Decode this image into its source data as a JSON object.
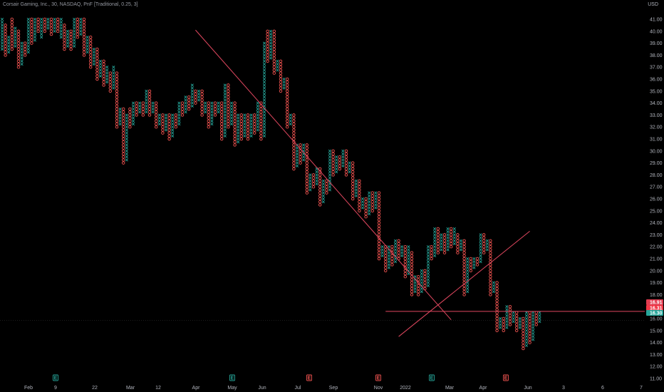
{
  "legend": {
    "text": "Corsair Gaming, Inc., 30, NASDAQ, PnF [Traditional, 0.25, 3]"
  },
  "currency": "USD",
  "colors": {
    "background": "#000000",
    "up": "#26a69a",
    "down": "#ef5350",
    "trendline": "#e0475f",
    "grid": "#222222"
  },
  "price_tags": [
    {
      "label": "16.91",
      "value": 16.91,
      "color": "#e03c50"
    },
    {
      "label": "16.31",
      "value": 16.31,
      "color": "#f23645"
    },
    {
      "label": "16.30",
      "value": 15.85,
      "color": "#26a69a"
    }
  ],
  "events": [
    {
      "label": "E",
      "x_label": "9",
      "type": "earnings-positive"
    },
    {
      "label": "E",
      "x_label": "May",
      "type": "earnings-positive"
    },
    {
      "label": "E",
      "x_label": "Jul",
      "type": "earnings-negative"
    },
    {
      "label": "E",
      "x_label": "Nov",
      "type": "earnings-negative"
    },
    {
      "label": "E",
      "x_label": "2022",
      "type": "earnings-positive"
    },
    {
      "label": "E",
      "x_label": "Apr",
      "type": "earnings-negative"
    }
  ],
  "chart_data": {
    "type": "point-and-figure",
    "title": "Corsair Gaming, Inc., 30, NASDAQ, PnF [Traditional, 0.25, 3]",
    "y_axis": {
      "ticks": [
        "11.00",
        "12.00",
        "13.00",
        "14.00",
        "15.00",
        "16.00",
        "17.00",
        "18.00",
        "19.00",
        "20.00",
        "21.00",
        "22.00",
        "23.00",
        "24.00",
        "25.00",
        "26.00",
        "27.00",
        "28.00",
        "29.00",
        "30.00",
        "31.00",
        "32.00",
        "33.00",
        "34.00",
        "35.00",
        "36.00",
        "37.00",
        "38.00",
        "39.00",
        "40.00",
        "41.00"
      ],
      "range": [
        11,
        41
      ],
      "side": "right"
    },
    "x_axis": {
      "ticks": [
        "Feb",
        "9",
        "22",
        "Mar",
        "12",
        "Apr",
        "May",
        "Jun",
        "Jul",
        "Sep",
        "Nov",
        "2022",
        "Mar",
        "Apr",
        "Jun",
        "3",
        "6",
        "7"
      ]
    },
    "box_size": 0.25,
    "reversal": 3,
    "columns": [
      {
        "t": "X",
        "lo": 38.5,
        "hi": 41.0
      },
      {
        "t": "O",
        "lo": 38.0,
        "hi": 40.5
      },
      {
        "t": "X",
        "lo": 38.25,
        "hi": 39.5
      },
      {
        "t": "O",
        "lo": 38.5,
        "hi": 41.0
      },
      {
        "t": "X",
        "lo": 38.75,
        "hi": 40.25
      },
      {
        "t": "O",
        "lo": 37.0,
        "hi": 40.0
      },
      {
        "t": "X",
        "lo": 37.25,
        "hi": 39.0
      },
      {
        "t": "O",
        "lo": 38.0,
        "hi": 39.0
      },
      {
        "t": "X",
        "lo": 38.25,
        "hi": 41.0
      },
      {
        "t": "O",
        "lo": 39.0,
        "hi": 41.0
      },
      {
        "t": "X",
        "lo": 39.25,
        "hi": 41.0
      },
      {
        "t": "O",
        "lo": 40.0,
        "hi": 41.0
      },
      {
        "t": "X",
        "lo": 39.5,
        "hi": 41.0
      },
      {
        "t": "O",
        "lo": 40.0,
        "hi": 41.0
      },
      {
        "t": "X",
        "lo": 40.25,
        "hi": 41.0
      },
      {
        "t": "O",
        "lo": 39.75,
        "hi": 41.0
      },
      {
        "t": "X",
        "lo": 40.0,
        "hi": 41.0
      },
      {
        "t": "O",
        "lo": 40.0,
        "hi": 41.0
      },
      {
        "t": "X",
        "lo": 39.5,
        "hi": 41.0
      },
      {
        "t": "O",
        "lo": 38.5,
        "hi": 40.5
      },
      {
        "t": "X",
        "lo": 38.75,
        "hi": 40.0
      },
      {
        "t": "O",
        "lo": 38.5,
        "hi": 40.0
      },
      {
        "t": "X",
        "lo": 38.75,
        "hi": 41.0
      },
      {
        "t": "O",
        "lo": 39.5,
        "hi": 41.0
      },
      {
        "t": "X",
        "lo": 39.75,
        "hi": 41.0
      },
      {
        "t": "O",
        "lo": 38.0,
        "hi": 41.0
      },
      {
        "t": "X",
        "lo": 38.25,
        "hi": 39.5
      },
      {
        "t": "O",
        "lo": 37.0,
        "hi": 39.5
      },
      {
        "t": "X",
        "lo": 37.25,
        "hi": 38.5
      },
      {
        "t": "O",
        "lo": 36.0,
        "hi": 38.5
      },
      {
        "t": "X",
        "lo": 36.25,
        "hi": 37.5
      },
      {
        "t": "O",
        "lo": 35.5,
        "hi": 37.5
      },
      {
        "t": "X",
        "lo": 35.75,
        "hi": 37.0
      },
      {
        "t": "O",
        "lo": 35.0,
        "hi": 36.5
      },
      {
        "t": "X",
        "lo": 35.25,
        "hi": 37.0
      },
      {
        "t": "O",
        "lo": 32.0,
        "hi": 36.5
      },
      {
        "t": "X",
        "lo": 32.25,
        "hi": 33.5
      },
      {
        "t": "O",
        "lo": 29.0,
        "hi": 33.5
      },
      {
        "t": "X",
        "lo": 29.25,
        "hi": 33.0
      },
      {
        "t": "O",
        "lo": 32.0,
        "hi": 33.5
      },
      {
        "t": "X",
        "lo": 32.25,
        "hi": 34.0
      },
      {
        "t": "O",
        "lo": 33.0,
        "hi": 34.0
      },
      {
        "t": "X",
        "lo": 33.25,
        "hi": 34.0
      },
      {
        "t": "O",
        "lo": 33.0,
        "hi": 34.0
      },
      {
        "t": "X",
        "lo": 33.25,
        "hi": 35.0
      },
      {
        "t": "O",
        "lo": 33.0,
        "hi": 35.0
      },
      {
        "t": "X",
        "lo": 33.25,
        "hi": 34.0
      },
      {
        "t": "O",
        "lo": 32.0,
        "hi": 34.0
      },
      {
        "t": "X",
        "lo": 32.25,
        "hi": 33.0
      },
      {
        "t": "O",
        "lo": 31.5,
        "hi": 33.0
      },
      {
        "t": "X",
        "lo": 31.75,
        "hi": 33.0
      },
      {
        "t": "O",
        "lo": 31.0,
        "hi": 33.0
      },
      {
        "t": "X",
        "lo": 31.25,
        "hi": 33.0
      },
      {
        "t": "O",
        "lo": 32.0,
        "hi": 33.0
      },
      {
        "t": "X",
        "lo": 32.25,
        "hi": 34.0
      },
      {
        "t": "O",
        "lo": 33.0,
        "hi": 34.0
      },
      {
        "t": "X",
        "lo": 33.25,
        "hi": 34.5
      },
      {
        "t": "O",
        "lo": 33.5,
        "hi": 34.5
      },
      {
        "t": "X",
        "lo": 33.75,
        "hi": 35.5
      },
      {
        "t": "O",
        "lo": 34.0,
        "hi": 35.0
      },
      {
        "t": "X",
        "lo": 34.25,
        "hi": 35.0
      },
      {
        "t": "O",
        "lo": 33.0,
        "hi": 35.0
      },
      {
        "t": "X",
        "lo": 33.25,
        "hi": 34.0
      },
      {
        "t": "O",
        "lo": 32.0,
        "hi": 34.0
      },
      {
        "t": "X",
        "lo": 32.25,
        "hi": 34.0
      },
      {
        "t": "O",
        "lo": 33.0,
        "hi": 34.0
      },
      {
        "t": "X",
        "lo": 33.25,
        "hi": 34.0
      },
      {
        "t": "O",
        "lo": 31.0,
        "hi": 34.0
      },
      {
        "t": "X",
        "lo": 31.25,
        "hi": 35.5
      },
      {
        "t": "O",
        "lo": 32.0,
        "hi": 35.5
      },
      {
        "t": "X",
        "lo": 32.25,
        "hi": 34.0
      },
      {
        "t": "O",
        "lo": 30.5,
        "hi": 34.0
      },
      {
        "t": "X",
        "lo": 30.75,
        "hi": 33.0
      },
      {
        "t": "O",
        "lo": 31.0,
        "hi": 33.0
      },
      {
        "t": "X",
        "lo": 31.25,
        "hi": 33.0
      },
      {
        "t": "O",
        "lo": 31.0,
        "hi": 33.0
      },
      {
        "t": "X",
        "lo": 31.25,
        "hi": 33.0
      },
      {
        "t": "O",
        "lo": 31.5,
        "hi": 33.0
      },
      {
        "t": "X",
        "lo": 31.75,
        "hi": 34.0
      },
      {
        "t": "O",
        "lo": 31.0,
        "hi": 34.0
      },
      {
        "t": "X",
        "lo": 31.25,
        "hi": 39.0
      },
      {
        "t": "O",
        "lo": 37.5,
        "hi": 40.0
      },
      {
        "t": "X",
        "lo": 37.75,
        "hi": 40.0
      },
      {
        "t": "O",
        "lo": 36.5,
        "hi": 40.0
      },
      {
        "t": "X",
        "lo": 36.75,
        "hi": 37.5
      },
      {
        "t": "O",
        "lo": 35.0,
        "hi": 37.5
      },
      {
        "t": "X",
        "lo": 35.25,
        "hi": 36.0
      },
      {
        "t": "O",
        "lo": 32.0,
        "hi": 36.0
      },
      {
        "t": "X",
        "lo": 32.25,
        "hi": 33.0
      },
      {
        "t": "O",
        "lo": 28.5,
        "hi": 33.0
      },
      {
        "t": "X",
        "lo": 28.75,
        "hi": 30.5
      },
      {
        "t": "O",
        "lo": 29.0,
        "hi": 30.5
      },
      {
        "t": "X",
        "lo": 29.25,
        "hi": 30.5
      },
      {
        "t": "O",
        "lo": 26.5,
        "hi": 30.5
      },
      {
        "t": "X",
        "lo": 26.75,
        "hi": 28.0
      },
      {
        "t": "O",
        "lo": 27.0,
        "hi": 28.0
      },
      {
        "t": "X",
        "lo": 27.25,
        "hi": 28.5
      },
      {
        "t": "O",
        "lo": 25.5,
        "hi": 28.5
      },
      {
        "t": "X",
        "lo": 25.75,
        "hi": 27.5
      },
      {
        "t": "O",
        "lo": 26.5,
        "hi": 27.5
      },
      {
        "t": "X",
        "lo": 26.75,
        "hi": 30.0
      },
      {
        "t": "O",
        "lo": 28.0,
        "hi": 30.0
      },
      {
        "t": "X",
        "lo": 28.25,
        "hi": 29.5
      },
      {
        "t": "O",
        "lo": 28.5,
        "hi": 29.5
      },
      {
        "t": "X",
        "lo": 28.75,
        "hi": 30.0
      },
      {
        "t": "O",
        "lo": 28.0,
        "hi": 30.0
      },
      {
        "t": "X",
        "lo": 28.25,
        "hi": 29.0
      },
      {
        "t": "O",
        "lo": 26.0,
        "hi": 29.0
      },
      {
        "t": "X",
        "lo": 26.25,
        "hi": 27.5
      },
      {
        "t": "O",
        "lo": 25.0,
        "hi": 27.5
      },
      {
        "t": "X",
        "lo": 25.25,
        "hi": 26.0
      },
      {
        "t": "O",
        "lo": 24.5,
        "hi": 26.0
      },
      {
        "t": "X",
        "lo": 24.75,
        "hi": 26.5
      },
      {
        "t": "O",
        "lo": 25.0,
        "hi": 26.5
      },
      {
        "t": "X",
        "lo": 25.25,
        "hi": 26.5
      },
      {
        "t": "O",
        "lo": 21.0,
        "hi": 26.5
      },
      {
        "t": "X",
        "lo": 21.25,
        "hi": 22.0
      },
      {
        "t": "O",
        "lo": 20.0,
        "hi": 22.0
      },
      {
        "t": "X",
        "lo": 20.25,
        "hi": 22.0
      },
      {
        "t": "O",
        "lo": 20.5,
        "hi": 22.0
      },
      {
        "t": "X",
        "lo": 20.75,
        "hi": 22.5
      },
      {
        "t": "O",
        "lo": 21.0,
        "hi": 22.5
      },
      {
        "t": "X",
        "lo": 21.25,
        "hi": 22.0
      },
      {
        "t": "O",
        "lo": 19.5,
        "hi": 22.0
      },
      {
        "t": "X",
        "lo": 19.75,
        "hi": 22.0
      },
      {
        "t": "O",
        "lo": 18.0,
        "hi": 21.5
      },
      {
        "t": "X",
        "lo": 18.25,
        "hi": 19.5
      },
      {
        "t": "O",
        "lo": 18.0,
        "hi": 19.5
      },
      {
        "t": "X",
        "lo": 18.25,
        "hi": 20.0
      },
      {
        "t": "O",
        "lo": 18.5,
        "hi": 20.0
      },
      {
        "t": "X",
        "lo": 18.75,
        "hi": 22.0
      },
      {
        "t": "O",
        "lo": 21.0,
        "hi": 22.0
      },
      {
        "t": "X",
        "lo": 21.25,
        "hi": 23.5
      },
      {
        "t": "O",
        "lo": 21.5,
        "hi": 23.5
      },
      {
        "t": "X",
        "lo": 21.75,
        "hi": 23.0
      },
      {
        "t": "O",
        "lo": 21.5,
        "hi": 23.0
      },
      {
        "t": "X",
        "lo": 21.75,
        "hi": 23.5
      },
      {
        "t": "O",
        "lo": 22.0,
        "hi": 23.5
      },
      {
        "t": "X",
        "lo": 22.25,
        "hi": 23.5
      },
      {
        "t": "O",
        "lo": 21.5,
        "hi": 23.0
      },
      {
        "t": "X",
        "lo": 21.75,
        "hi": 22.5
      },
      {
        "t": "O",
        "lo": 18.0,
        "hi": 22.5
      },
      {
        "t": "X",
        "lo": 18.25,
        "hi": 21.0
      },
      {
        "t": "O",
        "lo": 20.0,
        "hi": 21.0
      },
      {
        "t": "X",
        "lo": 20.25,
        "hi": 21.0
      },
      {
        "t": "O",
        "lo": 20.5,
        "hi": 21.0
      },
      {
        "t": "X",
        "lo": 20.75,
        "hi": 23.0
      },
      {
        "t": "O",
        "lo": 21.5,
        "hi": 23.0
      },
      {
        "t": "X",
        "lo": 21.75,
        "hi": 22.5
      },
      {
        "t": "O",
        "lo": 18.0,
        "hi": 22.5
      },
      {
        "t": "X",
        "lo": 18.25,
        "hi": 19.0
      },
      {
        "t": "O",
        "lo": 15.0,
        "hi": 19.0
      },
      {
        "t": "X",
        "lo": 15.25,
        "hi": 16.0
      },
      {
        "t": "O",
        "lo": 15.0,
        "hi": 16.0
      },
      {
        "t": "X",
        "lo": 15.25,
        "hi": 17.0
      },
      {
        "t": "O",
        "lo": 15.5,
        "hi": 17.0
      },
      {
        "t": "X",
        "lo": 15.75,
        "hi": 16.5
      },
      {
        "t": "O",
        "lo": 15.0,
        "hi": 16.5
      },
      {
        "t": "X",
        "lo": 15.25,
        "hi": 16.0
      },
      {
        "t": "O",
        "lo": 13.5,
        "hi": 16.0
      },
      {
        "t": "X",
        "lo": 13.75,
        "hi": 16.5
      },
      {
        "t": "O",
        "lo": 14.0,
        "hi": 16.5
      },
      {
        "t": "X",
        "lo": 14.25,
        "hi": 16.5
      },
      {
        "t": "O",
        "lo": 15.5,
        "hi": 16.5
      },
      {
        "t": "X",
        "lo": 15.75,
        "hi": 16.5
      }
    ],
    "annotations": [
      {
        "type": "trendline",
        "from": {
          "col": 59,
          "price": 40.1
        },
        "to": {
          "col": 137,
          "price": 15.9
        }
      },
      {
        "type": "trendline",
        "from": {
          "col": 121,
          "price": 14.5
        },
        "to": {
          "col": 161,
          "price": 23.3
        }
      },
      {
        "type": "horizontal",
        "price": 16.6,
        "from_col": 117
      }
    ],
    "grid": false
  }
}
